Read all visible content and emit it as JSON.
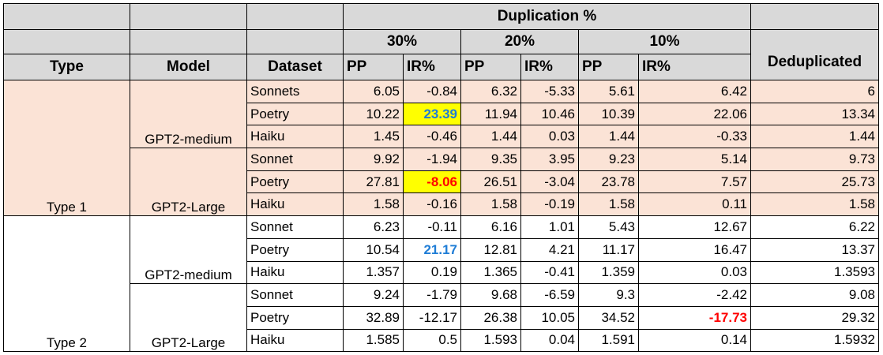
{
  "headers": {
    "duplication": "Duplication %",
    "pct_30": "30%",
    "pct_20": "20%",
    "pct_10": "10%",
    "deduplicated": "Deduplicated",
    "type": "Type",
    "model": "Model",
    "dataset": "Dataset",
    "pp": "PP",
    "ir": "IR%"
  },
  "groups": [
    {
      "type": "Type 1",
      "models": [
        "GPT2-medium",
        "GPT2-Large"
      ]
    },
    {
      "type": "Type 2",
      "models": [
        "GPT2-medium",
        "GPT2-Large"
      ]
    }
  ],
  "rows": [
    {
      "dataset": "Sonnets",
      "pp30": "6.05",
      "ir30": "-0.84",
      "pp20": "6.32",
      "ir20": "-5.33",
      "pp10": "5.61",
      "ir10": "6.42",
      "dedup": "6"
    },
    {
      "dataset": "Poetry",
      "pp30": "10.22",
      "ir30": "23.39",
      "pp20": "11.94",
      "ir20": "10.46",
      "pp10": "10.39",
      "ir10": "22.06",
      "dedup": "13.34"
    },
    {
      "dataset": "Haiku",
      "pp30": "1.45",
      "ir30": "-0.46",
      "pp20": "1.44",
      "ir20": "0.03",
      "pp10": "1.44",
      "ir10": "-0.33",
      "dedup": "1.44"
    },
    {
      "dataset": "Sonnet",
      "pp30": "9.92",
      "ir30": "-1.94",
      "pp20": "9.35",
      "ir20": "3.95",
      "pp10": "9.23",
      "ir10": "5.14",
      "dedup": "9.73"
    },
    {
      "dataset": "Poetry",
      "pp30": "27.81",
      "ir30": "-8.06",
      "pp20": "26.51",
      "ir20": "-3.04",
      "pp10": "23.78",
      "ir10": "7.57",
      "dedup": "25.73"
    },
    {
      "dataset": "Haiku",
      "pp30": "1.58",
      "ir30": "-0.16",
      "pp20": "1.58",
      "ir20": "-0.19",
      "pp10": "1.58",
      "ir10": "0.11",
      "dedup": "1.58"
    },
    {
      "dataset": "Sonnet",
      "pp30": "6.23",
      "ir30": "-0.11",
      "pp20": "6.16",
      "ir20": "1.01",
      "pp10": "5.43",
      "ir10": "12.67",
      "dedup": "6.22"
    },
    {
      "dataset": "Poetry",
      "pp30": "10.54",
      "ir30": "21.17",
      "pp20": "12.81",
      "ir20": "4.21",
      "pp10": "11.17",
      "ir10": "16.47",
      "dedup": "13.37"
    },
    {
      "dataset": "Haiku",
      "pp30": "1.357",
      "ir30": "0.19",
      "pp20": "1.365",
      "ir20": "-0.41",
      "pp10": "1.359",
      "ir10": "0.03",
      "dedup": "1.3593"
    },
    {
      "dataset": "Sonnet",
      "pp30": "9.24",
      "ir30": "-1.79",
      "pp20": "9.68",
      "ir20": "-6.59",
      "pp10": "9.3",
      "ir10": "-2.42",
      "dedup": "9.08"
    },
    {
      "dataset": "Poetry",
      "pp30": "32.89",
      "ir30": "-12.17",
      "pp20": "26.38",
      "ir20": "10.05",
      "pp10": "34.52",
      "ir10": "-17.73",
      "dedup": "29.32"
    },
    {
      "dataset": "Haiku",
      "pp30": "1.585",
      "ir30": "0.5",
      "pp20": "1.593",
      "ir20": "0.04",
      "pp10": "1.591",
      "ir10": "0.14",
      "dedup": "1.5932"
    }
  ],
  "colors": {
    "header_bg": "#d9d9d9",
    "type1_bg": "#fbe3d6",
    "type2_bg": "#ffffff",
    "highlight_yellow": "#ffff00",
    "highlight_blue_text": "#1f7dd6",
    "highlight_red_text": "#ff0000"
  }
}
